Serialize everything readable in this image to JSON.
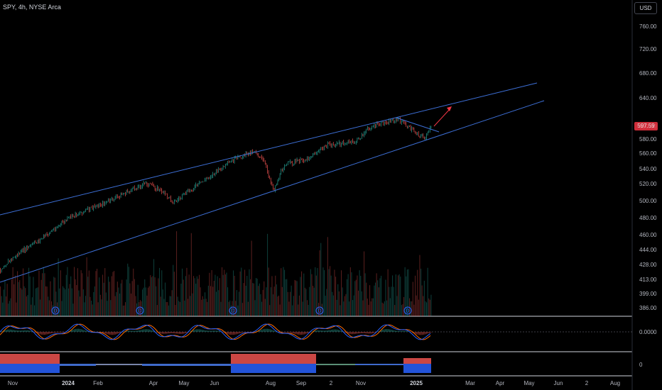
{
  "header": {
    "symbol_info": "SPY, 4h, NYSE Arca"
  },
  "currency": "USD",
  "last_price_label": "597.59",
  "colors": {
    "trendline": "#3d6fd6",
    "arrow": "#f23645",
    "up": "#26a69a",
    "down": "#ef5350",
    "macd": "#2962ff",
    "signal": "#ff6d00"
  },
  "price_axis": [
    "760.00",
    "720.00",
    "680.00",
    "640.00",
    "600.00",
    "580.00",
    "560.00",
    "540.00",
    "520.00",
    "500.00",
    "480.00",
    "460.00",
    "444.00",
    "428.00",
    "413.00",
    "399.00",
    "386.00"
  ],
  "oscillator_label": "0.0000",
  "histogram_label": "0",
  "time_axis": [
    {
      "label": "Nov",
      "bold": false
    },
    {
      "label": "2024",
      "bold": true
    },
    {
      "label": "Feb",
      "bold": false
    },
    {
      "label": "Apr",
      "bold": false
    },
    {
      "label": "May",
      "bold": false
    },
    {
      "label": "Jun",
      "bold": false
    },
    {
      "label": "Aug",
      "bold": false
    },
    {
      "label": "Sep",
      "bold": false
    },
    {
      "label": "2",
      "bold": false
    },
    {
      "label": "Nov",
      "bold": false
    },
    {
      "label": "2025",
      "bold": true
    },
    {
      "label": "Mar",
      "bold": false
    },
    {
      "label": "Apr",
      "bold": false
    },
    {
      "label": "May",
      "bold": false
    },
    {
      "label": "Jun",
      "bold": false
    },
    {
      "label": "2",
      "bold": false
    },
    {
      "label": "Aug",
      "bold": false
    }
  ],
  "dividend_marker": "D",
  "dividend_count": 5
}
